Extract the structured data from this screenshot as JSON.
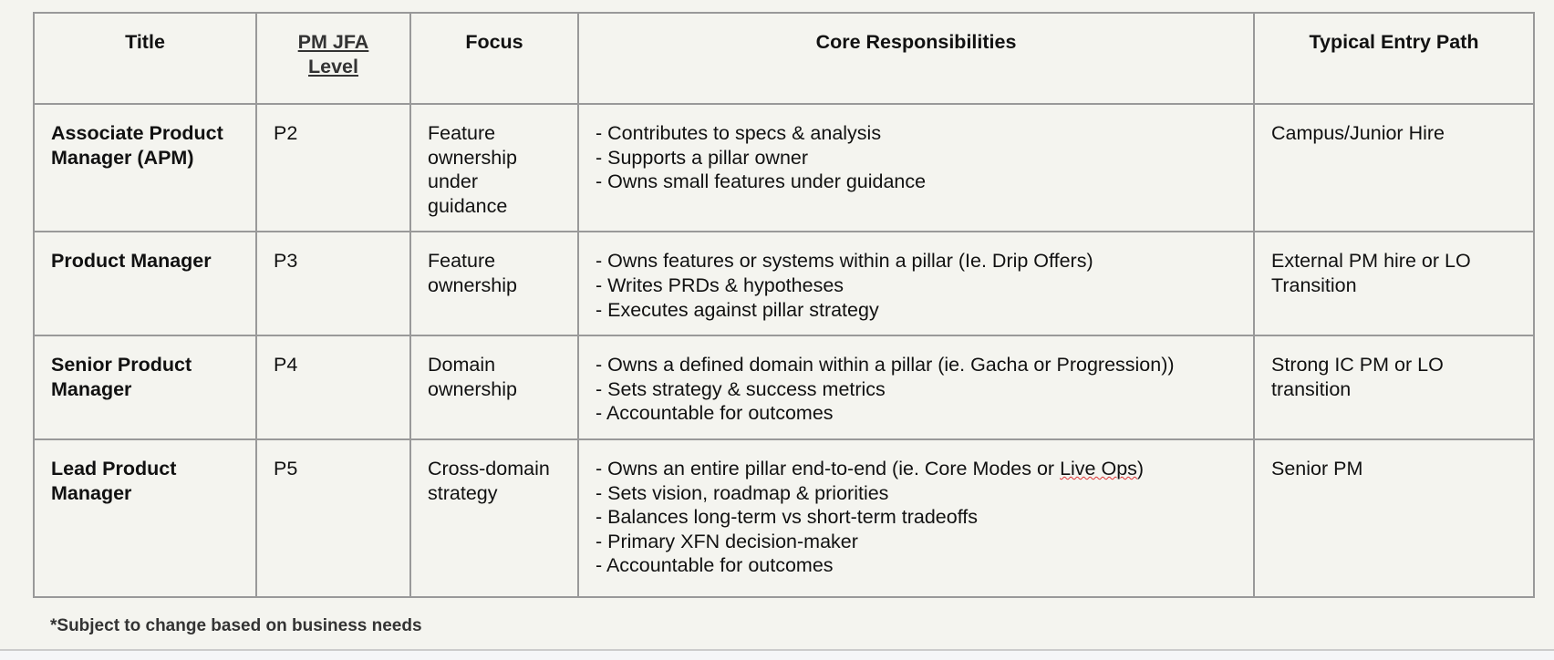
{
  "headers": [
    "Title",
    "PM JFA Level",
    "Focus",
    "Core Responsibilities",
    "Typical Entry Path"
  ],
  "rows": [
    {
      "title": "Associate Product Manager (APM)",
      "level": "P2",
      "focus": "Feature ownership under guidance",
      "responsibilities": [
        "- Contributes to specs & analysis",
        "- Supports a pillar owner",
        "- Owns small features under guidance"
      ],
      "entry": "Campus/Junior Hire"
    },
    {
      "title": "Product Manager",
      "level": "P3",
      "focus": "Feature ownership",
      "responsibilities": [
        "- Owns features or systems within a pillar (Ie. Drip Offers)",
        "- Writes PRDs & hypotheses",
        "- Executes against pillar strategy"
      ],
      "entry": "External PM hire or LO Transition"
    },
    {
      "title": "Senior Product Manager",
      "level": "P4",
      "focus": "Domain ownership",
      "responsibilities": [
        "- Owns a defined domain within a pillar (ie. Gacha or Progression))",
        "- Sets strategy & success metrics",
        "- Accountable for outcomes"
      ],
      "entry": "Strong IC PM or LO transition"
    },
    {
      "title": "Lead Product Manager",
      "level": "P5",
      "focus": "Cross-domain strategy",
      "responsibilities": [
        "- Owns an entire pillar end-to-end (ie. Core Modes or Live Ops)",
        "- Sets vision, roadmap & priorities",
        "- Balances long-term vs short-term tradeoffs",
        "- Primary XFN decision-maker",
        "- Accountable for outcomes"
      ],
      "entry": "Senior PM"
    }
  ],
  "footnote": "*Subject to change based on business needs"
}
